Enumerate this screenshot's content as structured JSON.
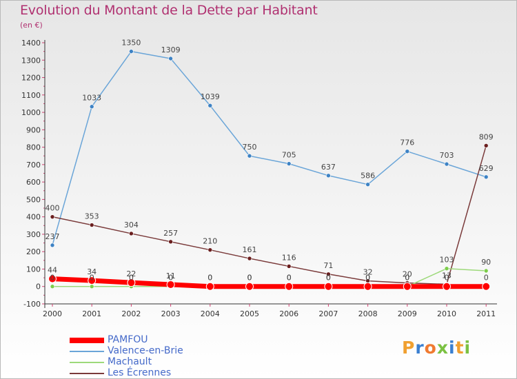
{
  "title": "Evolution du Montant de la Dette par Habitant",
  "subtitle": "(en €)",
  "colors": {
    "title": "#b03070",
    "axis": "#333333",
    "grid": "#cccccc"
  },
  "chart_data": {
    "type": "line",
    "title": "Evolution du Montant de la Dette par Habitant",
    "subtitle": "(en €)",
    "xlabel": "",
    "ylabel": "",
    "ylim": [
      -100,
      1400
    ],
    "yticks": [
      -100,
      0,
      100,
      200,
      300,
      400,
      500,
      600,
      700,
      800,
      900,
      1000,
      1100,
      1200,
      1300,
      1400
    ],
    "categories": [
      "2000",
      "2001",
      "2002",
      "2003",
      "2004",
      "2005",
      "2006",
      "2007",
      "2008",
      "2009",
      "2010",
      "2011"
    ],
    "legend_position": "bottom-left",
    "series": [
      {
        "name": "Valence-en-Brie",
        "color": "#6aa5d8",
        "marker": "#3d82c4",
        "width": 1.5,
        "values": [
          237,
          1033,
          1350,
          1309,
          1039,
          750,
          705,
          637,
          586,
          776,
          703,
          629
        ]
      },
      {
        "name": "Les Écrennes",
        "color": "#7a3a3a",
        "marker": "#6a1e1e",
        "width": 1.5,
        "values": [
          400,
          353,
          304,
          257,
          210,
          161,
          116,
          71,
          32,
          20,
          13,
          809
        ]
      },
      {
        "name": "Machault",
        "color": "#9dd97a",
        "marker": "#7ccd4a",
        "width": 1.5,
        "values": [
          0,
          0,
          0,
          0,
          0,
          0,
          0,
          0,
          0,
          0,
          103,
          90
        ]
      },
      {
        "name": "PAMFOU",
        "color": "#ff0000",
        "marker": "#ff0000",
        "width": 7,
        "values": [
          44,
          34,
          22,
          11,
          0,
          0,
          0,
          0,
          0,
          0,
          0,
          0
        ]
      }
    ],
    "data_labels": [
      [
        "237",
        "1033",
        "1350",
        "1309",
        "1039",
        "750",
        "705",
        "637",
        "586",
        "776",
        "703",
        "629"
      ],
      [
        "400",
        "353",
        "304",
        "257",
        "210",
        "161",
        "116",
        "71",
        "32",
        "20",
        "13",
        "809"
      ],
      [
        "0",
        "0",
        "0",
        "0",
        "0",
        "0",
        "0",
        "0",
        "0",
        "0",
        "103",
        "90"
      ],
      [
        "44",
        "34",
        "22",
        "11",
        "0",
        "0",
        "0",
        "0",
        "0",
        "0",
        "0",
        "0"
      ]
    ]
  },
  "legend": [
    {
      "label": "PAMFOU",
      "color": "#ff0000"
    },
    {
      "label": "Valence-en-Brie",
      "color": "#6aa5d8"
    },
    {
      "label": "Machault",
      "color": "#9dd97a"
    },
    {
      "label": "Les Écrennes",
      "color": "#7a3a3a"
    }
  ],
  "logo": {
    "letters": [
      "P",
      "r",
      "o",
      "x",
      "i",
      "t",
      "i"
    ],
    "colors": [
      "#f0a030",
      "#3a7fd0",
      "#f07a30",
      "#7bc142",
      "#3a7fd0",
      "#f0a030",
      "#7bc142"
    ]
  }
}
